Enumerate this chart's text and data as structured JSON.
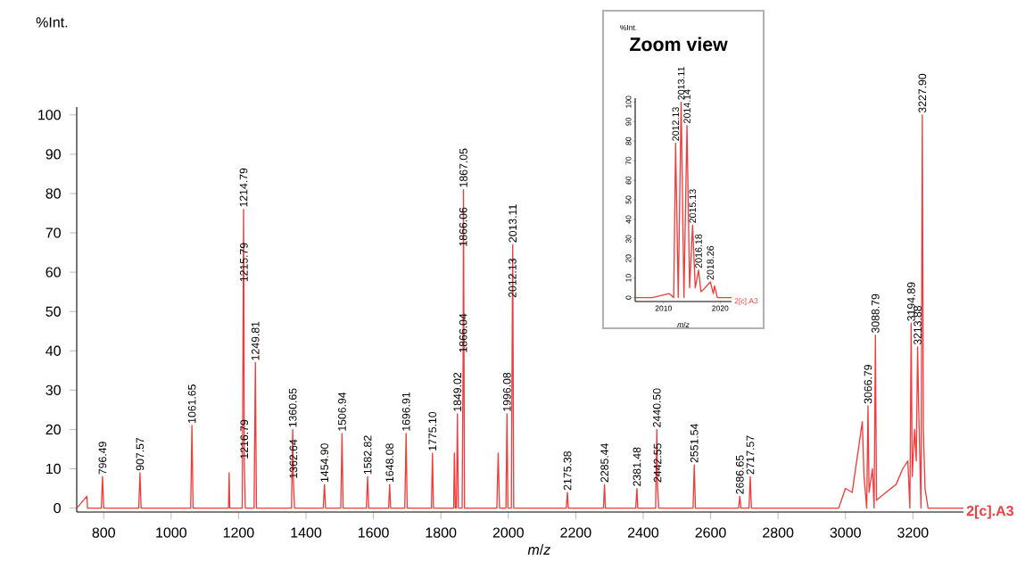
{
  "chart_data": [
    {
      "type": "line",
      "xlabel": "*m*/*z*",
      "ylabel": "%Int.",
      "xlim": [
        720,
        3350
      ],
      "ylim": [
        -1,
        102
      ],
      "xticks": [
        800,
        1000,
        1200,
        1400,
        1600,
        1800,
        2000,
        2200,
        2400,
        2600,
        2800,
        3000,
        3200
      ],
      "yticks": [
        0,
        10,
        20,
        30,
        40,
        50,
        60,
        70,
        80,
        90,
        100
      ],
      "series": [
        {
          "color": "#f03c3c",
          "x": [
            720,
            750,
            752,
            793,
            796.49,
            800,
            904,
            907.57,
            911,
            1058,
            1061.65,
            1065,
            1170,
            1172,
            1174,
            1211,
            1214.79,
            1215.79,
            1216.79,
            1220,
            1246,
            1249.81,
            1253,
            1357,
            1360.65,
            1362.64,
            1366,
            1451,
            1454.9,
            1458,
            1503,
            1506.94,
            1510,
            1579,
            1582.82,
            1586,
            1645,
            1648.08,
            1651,
            1693,
            1696.91,
            1700,
            1772,
            1775.1,
            1778,
            1838,
            1840,
            1843,
            1846,
            1849.02,
            1852,
            1863,
            1866.04,
            1867.05,
            1870,
            1966,
            1970,
            1974,
            1993,
            1996.08,
            1999,
            2009,
            2012.13,
            2013.11,
            2016,
            2172,
            2175.38,
            2178,
            2282,
            2285.44,
            2288,
            2378,
            2381.48,
            2384,
            2437,
            2440.5,
            2442.55,
            2446,
            2548,
            2551.54,
            2555,
            2683,
            2686.65,
            2690,
            2714,
            2717.57,
            2721,
            2980,
            3000,
            3020,
            3040,
            3050,
            3055,
            3063,
            3066.79,
            3070,
            3080,
            3085,
            3088.79,
            3092,
            3120,
            3150,
            3170,
            3185,
            3191,
            3194.89,
            3198,
            3205,
            3210,
            3213.88,
            3218,
            3224,
            3227.9,
            3231,
            3236,
            3245,
            3350
          ],
          "values": [
            0,
            3,
            0,
            0,
            8,
            0,
            0,
            9,
            0,
            0,
            21,
            0,
            0,
            9,
            0,
            0,
            76,
            57,
            12,
            0,
            0,
            37,
            0,
            0,
            20,
            7,
            0,
            0,
            6,
            0,
            0,
            19,
            0,
            0,
            8,
            0,
            0,
            6,
            0,
            0,
            19,
            0,
            0,
            14,
            0,
            0,
            14,
            0,
            0,
            24,
            0,
            0,
            39,
            81,
            0,
            0,
            14,
            0,
            0,
            24,
            0,
            0,
            53,
            67,
            0,
            0,
            4,
            0,
            0,
            6,
            0,
            0,
            5,
            0,
            0,
            20,
            6,
            0,
            0,
            11,
            0,
            0,
            3,
            0,
            0,
            8,
            0,
            0,
            5,
            4,
            16,
            22,
            8,
            0,
            26,
            4,
            10,
            0,
            44,
            2,
            4,
            6,
            10,
            12,
            0,
            47,
            8,
            20,
            12,
            41,
            22,
            0,
            100,
            20,
            5,
            0,
            0
          ]
        }
      ],
      "annotations": [
        {
          "text": "796.49",
          "x": 796.49,
          "y": 8
        },
        {
          "text": "907.57",
          "x": 907.57,
          "y": 9
        },
        {
          "text": "1061.65",
          "x": 1061.65,
          "y": 21
        },
        {
          "text": "1214.79",
          "x": 1214.79,
          "y": 76
        },
        {
          "text": "1215.79",
          "x": 1215.79,
          "y": 57
        },
        {
          "text": "1216.79",
          "x": 1216.79,
          "y": 12
        },
        {
          "text": "1249.81",
          "x": 1249.81,
          "y": 37
        },
        {
          "text": "1360.65",
          "x": 1360.65,
          "y": 20
        },
        {
          "text": "1362.64",
          "x": 1362.64,
          "y": 7
        },
        {
          "text": "1454.90",
          "x": 1454.9,
          "y": 6
        },
        {
          "text": "1506.94",
          "x": 1506.94,
          "y": 19
        },
        {
          "text": "1582.82",
          "x": 1582.82,
          "y": 8
        },
        {
          "text": "1648.08",
          "x": 1648.08,
          "y": 6
        },
        {
          "text": "1696.91",
          "x": 1696.91,
          "y": 19
        },
        {
          "text": "1775.10",
          "x": 1775.1,
          "y": 14
        },
        {
          "text": "1849.02",
          "x": 1849.02,
          "y": 24
        },
        {
          "text": "1866.04",
          "x": 1866.04,
          "y": 39
        },
        {
          "text": "1866.06",
          "x": 1866.06,
          "y": 66
        },
        {
          "text": "1867.05",
          "x": 1867.05,
          "y": 81
        },
        {
          "text": "1996.08",
          "x": 1996.08,
          "y": 24
        },
        {
          "text": "2012.13",
          "x": 2012.13,
          "y": 53
        },
        {
          "text": "2013.11",
          "x": 2013.11,
          "y": 67
        },
        {
          "text": "2175.38",
          "x": 2175.38,
          "y": 4
        },
        {
          "text": "2285.44",
          "x": 2285.44,
          "y": 6
        },
        {
          "text": "2381.48",
          "x": 2381.48,
          "y": 5
        },
        {
          "text": "2440.50",
          "x": 2440.5,
          "y": 20
        },
        {
          "text": "2442.55",
          "x": 2442.55,
          "y": 6
        },
        {
          "text": "2551.54",
          "x": 2551.54,
          "y": 11
        },
        {
          "text": "2686.65",
          "x": 2686.65,
          "y": 3
        },
        {
          "text": "2717.57",
          "x": 2717.57,
          "y": 8
        },
        {
          "text": "3066.79",
          "x": 3066.79,
          "y": 26
        },
        {
          "text": "3088.79",
          "x": 3088.79,
          "y": 44
        },
        {
          "text": "3194.89",
          "x": 3194.89,
          "y": 47
        },
        {
          "text": "3213.88",
          "x": 3213.88,
          "y": 41
        },
        {
          "text": "3227.90",
          "x": 3227.9,
          "y": 100
        },
        "2[c].A3"
      ]
    },
    {
      "type": "line",
      "title": "Zoom view",
      "xlabel": "*m*/*z*",
      "ylabel": "%Int.",
      "xlim": [
        2005,
        2022
      ],
      "ylim": [
        -2,
        102
      ],
      "xticks": [
        2010,
        2020
      ],
      "yticks": [
        0,
        10,
        20,
        30,
        40,
        50,
        60,
        70,
        80,
        90,
        100
      ],
      "series": [
        {
          "color": "#f03c3c",
          "x": [
            2005,
            2008,
            2011,
            2011.8,
            2012.13,
            2012.6,
            2013.11,
            2013.6,
            2014.14,
            2014.6,
            2015.13,
            2015.6,
            2016.18,
            2016.6,
            2017,
            2018.26,
            2018.8,
            2019,
            2019.5,
            2022
          ],
          "values": [
            0,
            0,
            2,
            0,
            79,
            0,
            100,
            0,
            88,
            5,
            37,
            5,
            14,
            3,
            4,
            8,
            2,
            6,
            0,
            0
          ]
        }
      ],
      "annotations": [
        {
          "text": "2012.13",
          "x": 2012.13,
          "y": 79
        },
        {
          "text": "2013.11",
          "x": 2013.11,
          "y": 100
        },
        {
          "text": "2014.14",
          "x": 2014.14,
          "y": 88
        },
        {
          "text": "2015.13",
          "x": 2015.13,
          "y": 37
        },
        {
          "text": "2016.18",
          "x": 2016.18,
          "y": 14
        },
        {
          "text": "2018.26",
          "x": 2018.26,
          "y": 8
        },
        "2[c].A3"
      ]
    }
  ]
}
